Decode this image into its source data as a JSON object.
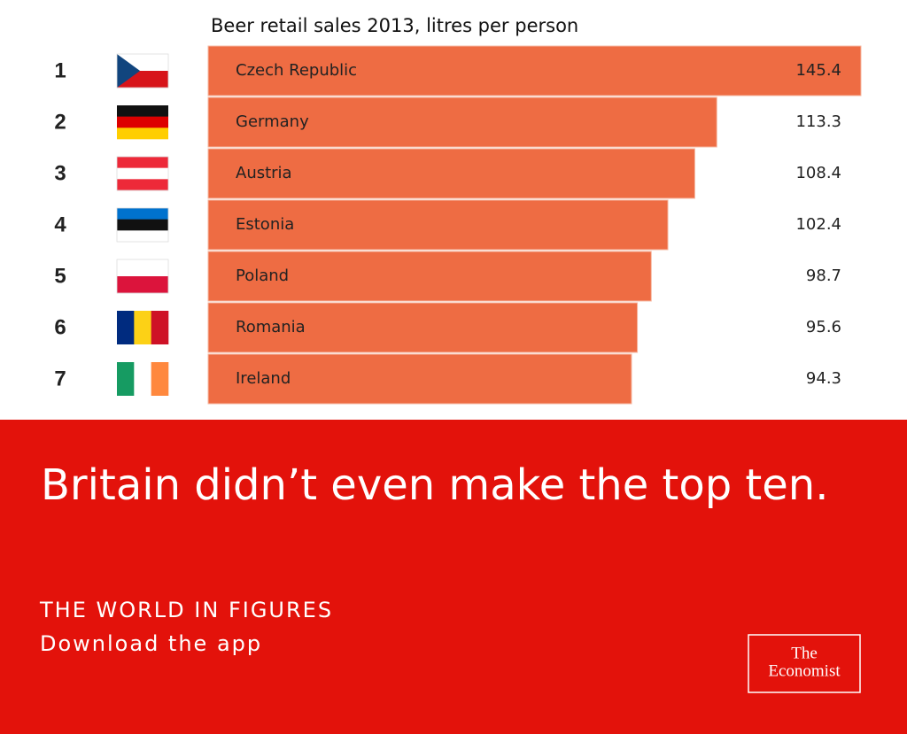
{
  "chart_data": {
    "type": "bar",
    "orientation": "horizontal",
    "title": "Beer retail sales 2013, litres per person",
    "ranks": [
      1,
      2,
      3,
      4,
      5,
      6,
      7
    ],
    "categories": [
      "Czech Republic",
      "Germany",
      "Austria",
      "Estonia",
      "Poland",
      "Romania",
      "Ireland"
    ],
    "values": [
      145.4,
      113.3,
      108.4,
      102.4,
      98.7,
      95.6,
      94.3
    ],
    "color": "#ee6c43"
  },
  "banner": {
    "headline": "Britain didn’t even make the top ten.",
    "tagline": "THE WORLD IN FIGURES",
    "cta": "Download the app",
    "logo": [
      "The",
      "Economist"
    ]
  }
}
